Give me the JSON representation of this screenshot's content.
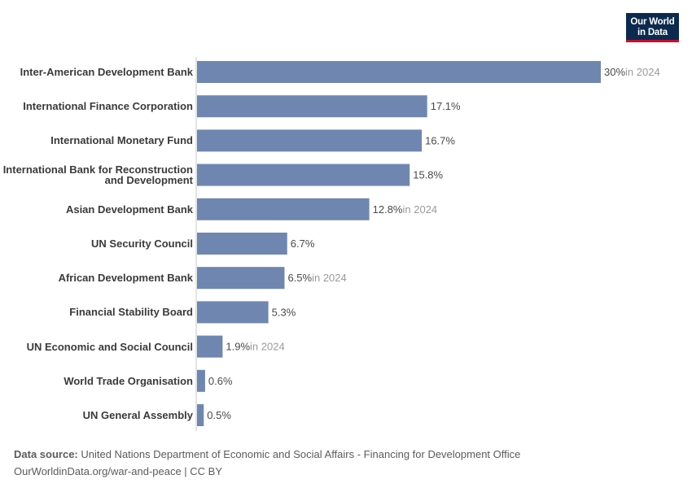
{
  "logo": {
    "line1": "Our World",
    "line2": "in Data",
    "bg_color": "#0b2a4e",
    "accent_color": "#c8102e"
  },
  "chart_data": {
    "type": "bar",
    "orientation": "horizontal",
    "bar_color": "#6f87b0",
    "grid": false,
    "categories": [
      [
        "Inter-American Development Bank"
      ],
      [
        "International Finance Corporation"
      ],
      [
        "International Monetary Fund"
      ],
      [
        "International Bank for Reconstruction",
        "and Development"
      ],
      [
        "Asian Development Bank"
      ],
      [
        "UN Security Council"
      ],
      [
        "African Development Bank"
      ],
      [
        "Financial Stability Board"
      ],
      [
        "UN Economic and Social Council"
      ],
      [
        "World Trade Organisation"
      ],
      [
        "UN General Assembly"
      ]
    ],
    "values": [
      30,
      17.1,
      16.7,
      15.8,
      12.8,
      6.7,
      6.5,
      5.3,
      1.9,
      0.6,
      0.5
    ],
    "value_labels": [
      "30%",
      "17.1%",
      "16.7%",
      "15.8%",
      "12.8%",
      "6.7%",
      "6.5%",
      "5.3%",
      "1.9%",
      "0.6%",
      "0.5%"
    ],
    "year_notes": [
      "in 2024",
      "",
      "",
      "",
      "in 2024",
      "",
      "in 2024",
      "",
      "in 2024",
      "",
      ""
    ],
    "xlim": [
      0,
      30
    ]
  },
  "footer": {
    "source_label": "Data source:",
    "source_text": " United Nations Department of Economic and Social Affairs - Financing for Development Office",
    "credit": "OurWorldinData.org/war-and-peace | CC BY"
  }
}
